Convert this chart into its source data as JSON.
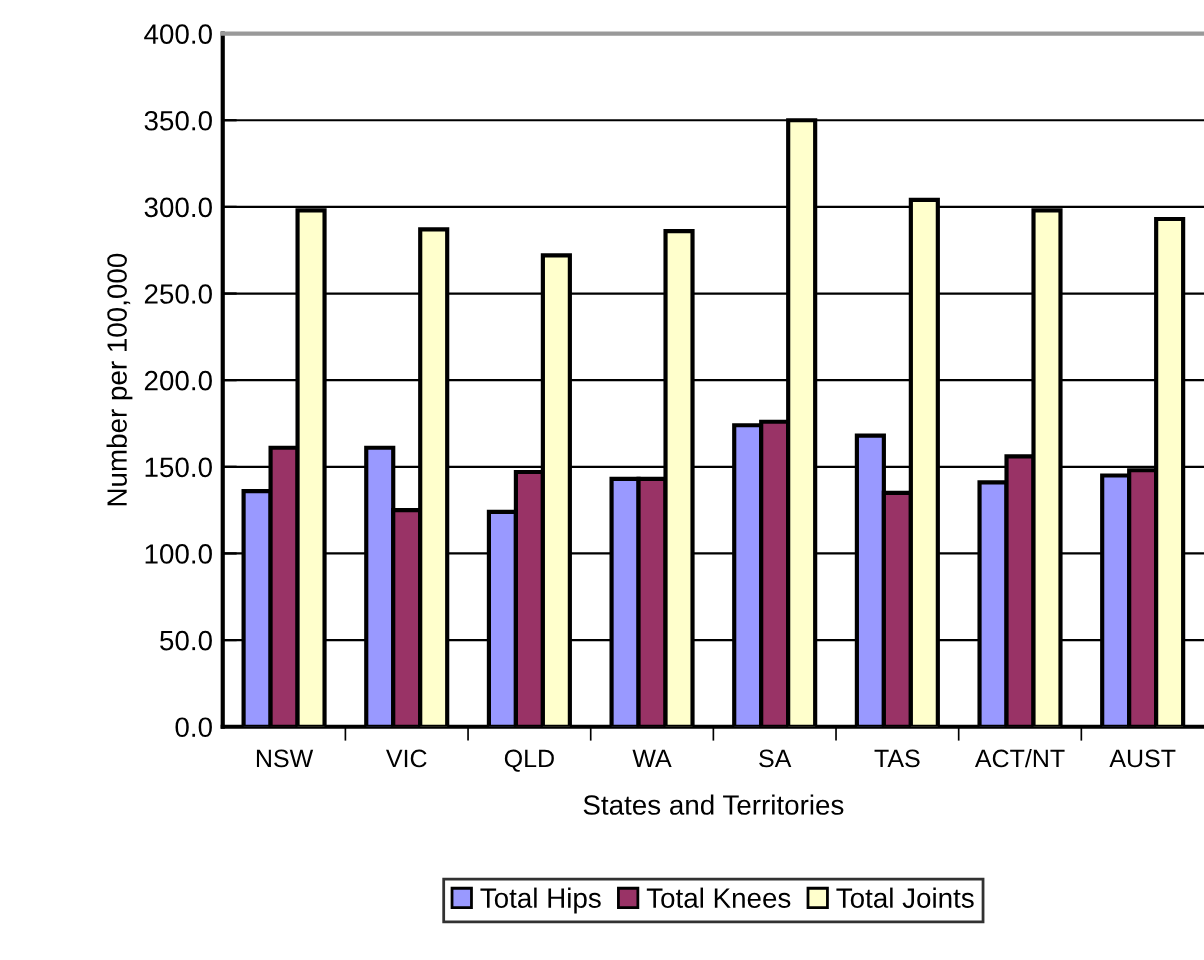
{
  "chart_data": {
    "type": "bar",
    "xlabel": "States and Territories",
    "ylabel": "Number per 100,000",
    "categories": [
      "NSW",
      "VIC",
      "QLD",
      "WA",
      "SA",
      "TAS",
      "ACT/NT",
      "AUST"
    ],
    "series": [
      {
        "name": "Total Hips",
        "color": "#9999ff",
        "values": [
          136,
          161,
          124,
          143,
          174,
          168,
          141,
          145
        ]
      },
      {
        "name": "Total Knees",
        "color": "#993366",
        "values": [
          161,
          125,
          147,
          143,
          176,
          135,
          156,
          148
        ]
      },
      {
        "name": "Total Joints",
        "color": "#ffffcc",
        "values": [
          298,
          287,
          272,
          286,
          350,
          304,
          298,
          293
        ]
      }
    ],
    "ylim": [
      0,
      400
    ],
    "yticks": [
      {
        "value": 0,
        "label": "0.0"
      },
      {
        "value": 50,
        "label": "50.0"
      },
      {
        "value": 100,
        "label": "100.0"
      },
      {
        "value": 150,
        "label": "150.0"
      },
      {
        "value": 200,
        "label": "200.0"
      },
      {
        "value": 250,
        "label": "250.0"
      },
      {
        "value": 300,
        "label": "300.0"
      },
      {
        "value": 350,
        "label": "350.0"
      },
      {
        "value": 400,
        "label": "400.0"
      }
    ],
    "grid": "y",
    "legend": "bottom"
  }
}
